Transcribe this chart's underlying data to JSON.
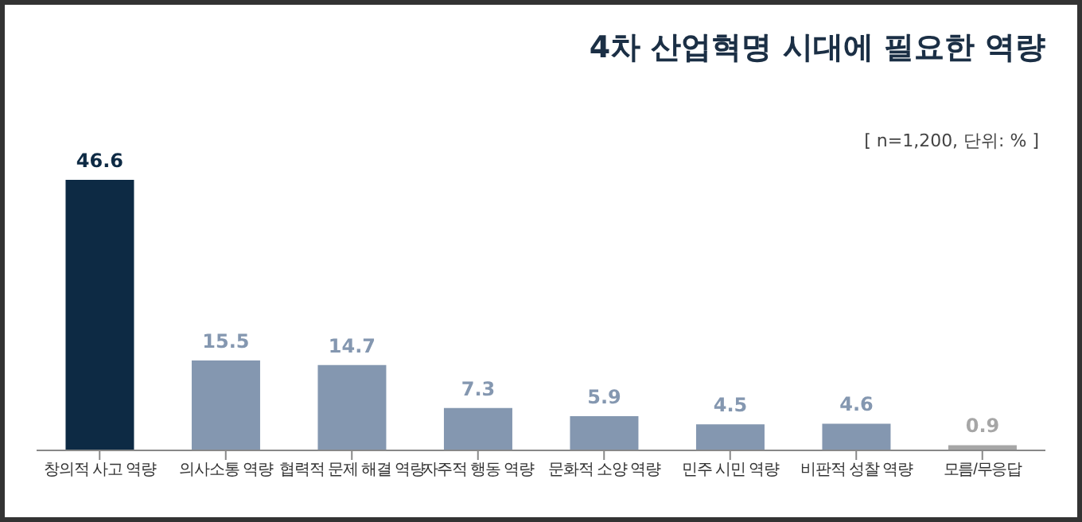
{
  "chart_data": {
    "type": "bar",
    "title": "4차 산업혁명 시대에 필요한 역량",
    "subtitle": "[ n=1,200, 단위: % ]",
    "categories": [
      "창의적 사고 역량",
      "의사소통 역량",
      "협력적 문제 해결 역량",
      "자주적 행동 역량",
      "문화적 소양 역량",
      "민주 시민 역량",
      "비판적 성찰 역량",
      "모름/무응답"
    ],
    "values": [
      46.6,
      15.5,
      14.7,
      7.3,
      5.9,
      4.5,
      4.6,
      0.9
    ],
    "colors": [
      "#0d2a44",
      "#8497b0",
      "#8497b0",
      "#8497b0",
      "#8497b0",
      "#8497b0",
      "#8497b0",
      "#a6a6a6"
    ],
    "data_labels": true
  }
}
